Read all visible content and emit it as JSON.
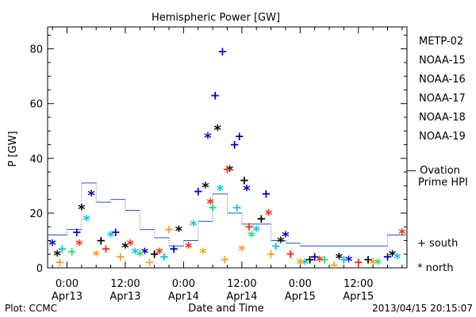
{
  "chart_data": {
    "type": "scatter",
    "title": "Hemispheric Power [GW]",
    "xlabel": "Date and Time",
    "ylabel": "P [GW]",
    "ylim": [
      0,
      88
    ],
    "y_ticks": [
      0,
      20,
      40,
      60,
      80
    ],
    "xlim": [
      "2013-04-12T20:00",
      "2013-04-15T22:00"
    ],
    "x_ticks": [
      {
        "t": "2013-04-13T00:00",
        "time": "0:00",
        "date": "Apr13"
      },
      {
        "t": "2013-04-13T12:00",
        "time": "12:00",
        "date": "Apr13"
      },
      {
        "t": "2013-04-14T00:00",
        "time": "0:00",
        "date": "Apr14"
      },
      {
        "t": "2013-04-14T12:00",
        "time": "12:00",
        "date": "Apr14"
      },
      {
        "t": "2013-04-15T00:00",
        "time": "0:00",
        "date": "Apr15"
      },
      {
        "t": "2013-04-15T12:00",
        "time": "12:00",
        "date": "Apr15"
      }
    ],
    "series": [
      {
        "name": "METP-02",
        "color": "#000000",
        "points": [
          {
            "t": "2013-04-12T22:00",
            "y": 5,
            "m": "north"
          },
          {
            "t": "2013-04-13T03:00",
            "y": 22,
            "m": "north"
          },
          {
            "t": "2013-04-13T07:00",
            "y": 10,
            "m": "south"
          },
          {
            "t": "2013-04-13T12:00",
            "y": 8,
            "m": "north"
          },
          {
            "t": "2013-04-13T18:00",
            "y": 5,
            "m": "south"
          },
          {
            "t": "2013-04-13T23:00",
            "y": 14,
            "m": "north"
          },
          {
            "t": "2013-04-14T04:30",
            "y": 30,
            "m": "north"
          },
          {
            "t": "2013-04-14T07:00",
            "y": 51,
            "m": "north"
          },
          {
            "t": "2013-04-14T09:30",
            "y": 36,
            "m": "north"
          },
          {
            "t": "2013-04-14T12:30",
            "y": 32,
            "m": "south"
          },
          {
            "t": "2013-04-14T16:00",
            "y": 18,
            "m": "south"
          },
          {
            "t": "2013-04-14T20:00",
            "y": 10,
            "m": "north"
          },
          {
            "t": "2013-04-15T02:00",
            "y": 3,
            "m": "south"
          },
          {
            "t": "2013-04-15T08:00",
            "y": 4,
            "m": "north"
          },
          {
            "t": "2013-04-15T14:00",
            "y": 3,
            "m": "south"
          },
          {
            "t": "2013-04-15T19:00",
            "y": 5,
            "m": "north"
          }
        ]
      },
      {
        "name": "NOAA-15",
        "color": "#0000cc",
        "points": [
          {
            "t": "2013-04-12T21:00",
            "y": 9,
            "m": "north"
          },
          {
            "t": "2013-04-13T02:00",
            "y": 13,
            "m": "south"
          },
          {
            "t": "2013-04-13T05:00",
            "y": 27,
            "m": "north"
          },
          {
            "t": "2013-04-13T10:00",
            "y": 13,
            "m": "south"
          },
          {
            "t": "2013-04-13T16:00",
            "y": 6,
            "m": "north"
          },
          {
            "t": "2013-04-13T22:00",
            "y": 7,
            "m": "south"
          },
          {
            "t": "2013-04-14T03:00",
            "y": 28,
            "m": "south"
          },
          {
            "t": "2013-04-14T05:00",
            "y": 48,
            "m": "north"
          },
          {
            "t": "2013-04-14T06:30",
            "y": 63,
            "m": "south"
          },
          {
            "t": "2013-04-14T08:00",
            "y": 79,
            "m": "south"
          },
          {
            "t": "2013-04-14T10:30",
            "y": 45,
            "m": "south"
          },
          {
            "t": "2013-04-14T11:30",
            "y": 48,
            "m": "south"
          },
          {
            "t": "2013-04-14T13:00",
            "y": 29,
            "m": "north"
          },
          {
            "t": "2013-04-14T17:00",
            "y": 27,
            "m": "south"
          },
          {
            "t": "2013-04-14T21:00",
            "y": 12,
            "m": "north"
          },
          {
            "t": "2013-04-15T03:00",
            "y": 4,
            "m": "south"
          },
          {
            "t": "2013-04-15T10:00",
            "y": 3,
            "m": "north"
          },
          {
            "t": "2013-04-15T18:00",
            "y": 4,
            "m": "south"
          }
        ]
      },
      {
        "name": "NOAA-16",
        "color": "#00c8e6",
        "points": [
          {
            "t": "2013-04-12T23:00",
            "y": 7,
            "m": "south"
          },
          {
            "t": "2013-04-13T04:00",
            "y": 18,
            "m": "north"
          },
          {
            "t": "2013-04-13T09:00",
            "y": 12,
            "m": "north"
          },
          {
            "t": "2013-04-13T14:00",
            "y": 6,
            "m": "north"
          },
          {
            "t": "2013-04-13T20:00",
            "y": 4,
            "m": "south"
          },
          {
            "t": "2013-04-14T02:00",
            "y": 16,
            "m": "north"
          },
          {
            "t": "2013-04-14T07:30",
            "y": 29,
            "m": "north"
          },
          {
            "t": "2013-04-14T11:00",
            "y": 22,
            "m": "south"
          },
          {
            "t": "2013-04-14T15:00",
            "y": 14,
            "m": "north"
          },
          {
            "t": "2013-04-14T19:00",
            "y": 8,
            "m": "south"
          },
          {
            "t": "2013-04-15T01:00",
            "y": 2,
            "m": "north"
          },
          {
            "t": "2013-04-15T09:00",
            "y": 3,
            "m": "south"
          },
          {
            "t": "2013-04-15T20:00",
            "y": 4,
            "m": "north"
          }
        ]
      },
      {
        "name": "NOAA-17",
        "color": "#1edc6e",
        "points": [
          {
            "t": "2013-04-13T01:00",
            "y": 6,
            "m": "south"
          },
          {
            "t": "2013-04-13T15:00",
            "y": 5,
            "m": "north"
          },
          {
            "t": "2013-04-14T06:00",
            "y": 22,
            "m": "south"
          },
          {
            "t": "2013-04-14T14:00",
            "y": 12,
            "m": "north"
          },
          {
            "t": "2013-04-15T05:00",
            "y": 3,
            "m": "south"
          },
          {
            "t": "2013-04-15T16:00",
            "y": 2,
            "m": "north"
          }
        ]
      },
      {
        "name": "NOAA-18",
        "color": "#f5a01e",
        "points": [
          {
            "t": "2013-04-12T22:30",
            "y": 2,
            "m": "south"
          },
          {
            "t": "2013-04-13T06:00",
            "y": 5,
            "m": "north"
          },
          {
            "t": "2013-04-13T11:00",
            "y": 4,
            "m": "south"
          },
          {
            "t": "2013-04-13T17:00",
            "y": 2,
            "m": "south"
          },
          {
            "t": "2013-04-13T21:00",
            "y": 14,
            "m": "south"
          },
          {
            "t": "2013-04-14T04:00",
            "y": 6,
            "m": "north"
          },
          {
            "t": "2013-04-14T08:30",
            "y": 3,
            "m": "south"
          },
          {
            "t": "2013-04-14T12:00",
            "y": 7,
            "m": "north"
          },
          {
            "t": "2013-04-14T18:00",
            "y": 5,
            "m": "south"
          },
          {
            "t": "2013-04-15T00:00",
            "y": 2,
            "m": "north"
          },
          {
            "t": "2013-04-15T07:00",
            "y": 1,
            "m": "south"
          },
          {
            "t": "2013-04-15T15:00",
            "y": 2,
            "m": "north"
          }
        ]
      },
      {
        "name": "NOAA-19",
        "color": "#ff2a14",
        "points": [
          {
            "t": "2013-04-13T02:30",
            "y": 9,
            "m": "north"
          },
          {
            "t": "2013-04-13T08:00",
            "y": 7,
            "m": "south"
          },
          {
            "t": "2013-04-13T13:00",
            "y": 9,
            "m": "north"
          },
          {
            "t": "2013-04-13T19:00",
            "y": 6,
            "m": "north"
          },
          {
            "t": "2013-04-14T01:00",
            "y": 8,
            "m": "north"
          },
          {
            "t": "2013-04-14T05:30",
            "y": 24,
            "m": "north"
          },
          {
            "t": "2013-04-14T09:00",
            "y": 36,
            "m": "south"
          },
          {
            "t": "2013-04-14T13:30",
            "y": 15,
            "m": "south"
          },
          {
            "t": "2013-04-14T17:30",
            "y": 20,
            "m": "north"
          },
          {
            "t": "2013-04-14T22:00",
            "y": 5,
            "m": "south"
          },
          {
            "t": "2013-04-15T04:00",
            "y": 3,
            "m": "north"
          },
          {
            "t": "2013-04-15T12:00",
            "y": 2,
            "m": "south"
          },
          {
            "t": "2013-04-15T21:00",
            "y": 13,
            "m": "north"
          }
        ]
      }
    ],
    "ovation": {
      "name": "— Ovation Prime HPI",
      "color": "#2a50c8",
      "t": [
        "2013-04-12T20:00",
        "2013-04-13T00:00",
        "2013-04-13T03:00",
        "2013-04-13T06:00",
        "2013-04-13T09:00",
        "2013-04-13T12:00",
        "2013-04-13T15:00",
        "2013-04-13T18:00",
        "2013-04-13T21:00",
        "2013-04-14T00:00",
        "2013-04-14T03:00",
        "2013-04-14T06:00",
        "2013-04-14T09:00",
        "2013-04-14T12:00",
        "2013-04-14T15:00",
        "2013-04-14T18:00",
        "2013-04-14T21:00",
        "2013-04-15T00:00",
        "2013-04-15T03:00",
        "2013-04-15T06:00",
        "2013-04-15T09:00",
        "2013-04-15T12:00",
        "2013-04-15T15:00",
        "2013-04-15T18:00",
        "2013-04-15T22:00"
      ],
      "y": [
        12,
        14,
        31,
        24,
        25,
        21,
        14,
        11,
        8,
        10,
        17,
        27,
        20,
        16,
        16,
        10,
        9,
        8,
        8,
        8,
        8,
        8,
        8,
        12,
        12
      ]
    },
    "legend": [
      "METP-02",
      "NOAA-15",
      "NOAA-16",
      "NOAA-17",
      "NOAA-18",
      "NOAA-19"
    ],
    "marker_legend": [
      {
        "symbol": "+",
        "label": "south"
      },
      {
        "symbol": "*",
        "label": "north"
      }
    ]
  },
  "footer": {
    "plot_credit": "Plot: CCMC",
    "timestamp": "2013/04/15 20:15:07"
  }
}
